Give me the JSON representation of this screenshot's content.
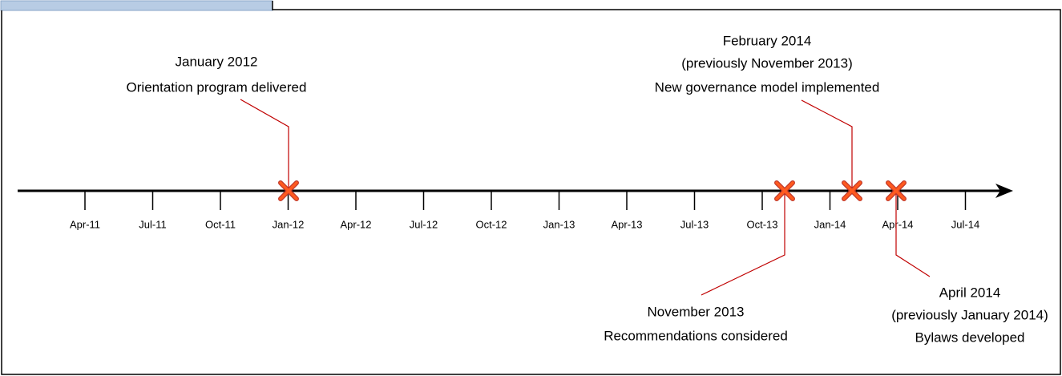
{
  "ticks": [
    "Apr-11",
    "Jul-11",
    "Oct-11",
    "Jan-12",
    "Apr-12",
    "Jul-12",
    "Oct-12",
    "Jan-13",
    "Apr-13",
    "Jul-13",
    "Oct-13",
    "Jan-14",
    "Apr-14",
    "Jul-14"
  ],
  "events": [
    {
      "lines": [
        "January 2012",
        "Orientation program delivered"
      ]
    },
    {
      "lines": [
        "February 2014",
        "(previously November 2013)",
        "New governance model implemented"
      ]
    },
    {
      "lines": [
        "November 2013",
        "Recommendations considered"
      ]
    },
    {
      "lines": [
        "April 2014",
        "(previously January 2014)",
        "Bylaws developed"
      ]
    }
  ]
}
